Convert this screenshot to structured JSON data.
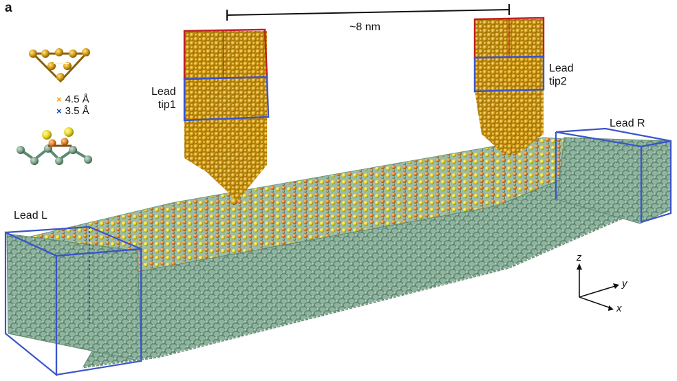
{
  "panel_label": "a",
  "distance_label": "~8 nm",
  "leads": {
    "tip1": [
      "Lead",
      "tip1"
    ],
    "tip2": [
      "Lead",
      "tip2"
    ],
    "left": "Lead L",
    "right": "Lead R"
  },
  "legend": {
    "orange": {
      "label": "4.5 Å",
      "color": "#f39c12"
    },
    "blue": {
      "label": "3.5 Å",
      "color": "#1f3fbf"
    }
  },
  "axes": {
    "z": "z",
    "y": "y",
    "x": "x"
  },
  "colors": {
    "gold": "#d9a21b",
    "substrate": "#7fa58f",
    "hydrogen": "#f2f2f2",
    "sulfur": "#e6d62a",
    "orange_atom": "#e0822a",
    "box_blue": "#3a55c9",
    "box_red": "#c02020"
  }
}
